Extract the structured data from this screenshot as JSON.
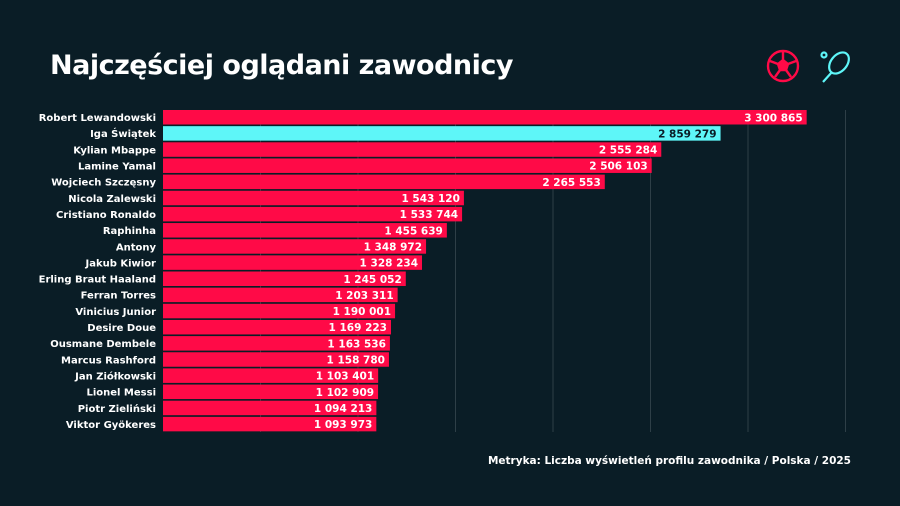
{
  "title": "Najczęściej oglądani zawodnicy",
  "footer": "Metryka: Liczba wyświetleń profilu zawodnika / Polska / 2025",
  "icons": [
    "football-icon",
    "tennis-racket-icon"
  ],
  "colors": {
    "background": "#0a1d26",
    "football": "#ff0a47",
    "tennis": "#5ef6f8",
    "grid": "#2e3f47"
  },
  "chart_data": {
    "type": "bar",
    "orientation": "horizontal",
    "xlim": [
      0,
      3500000
    ],
    "grid": true,
    "data_labels": true,
    "categories": [
      "Robert Lewandowski",
      "Iga Świątek",
      "Kylian Mbappe",
      "Lamine Yamal",
      "Wojciech Szczęsny",
      "Nicola Zalewski",
      "Cristiano Ronaldo",
      "Raphinha",
      "Antony",
      "Jakub Kiwior",
      "Erling Braut Haaland",
      "Ferran Torres",
      "Vinicius Junior",
      "Desire Doue",
      "Ousmane Dembele",
      "Marcus Rashford",
      "Jan Ziółkowski",
      "Lionel Messi",
      "Piotr Zieliński",
      "Viktor Gyökeres"
    ],
    "values": [
      3300865,
      2859279,
      2555284,
      2506103,
      2265553,
      1543120,
      1533744,
      1455639,
      1348972,
      1328234,
      1245052,
      1203311,
      1190001,
      1169223,
      1163536,
      1158780,
      1103401,
      1102909,
      1094213,
      1093973
    ],
    "labels": [
      "3 300 865",
      "2 859 279",
      "2 555 284",
      "2 506 103",
      "2 265 553",
      "1 543 120",
      "1 533 744",
      "1 455 639",
      "1 348 972",
      "1 328 234",
      "1 245 052",
      "1 203 311",
      "1 190 001",
      "1 169 223",
      "1 163 536",
      "1 158 780",
      "1 103 401",
      "1 102 909",
      "1 094 213",
      "1 093 973"
    ],
    "sport": [
      "football",
      "tennis",
      "football",
      "football",
      "football",
      "football",
      "football",
      "football",
      "football",
      "football",
      "football",
      "football",
      "football",
      "football",
      "football",
      "football",
      "football",
      "football",
      "football",
      "football"
    ]
  }
}
